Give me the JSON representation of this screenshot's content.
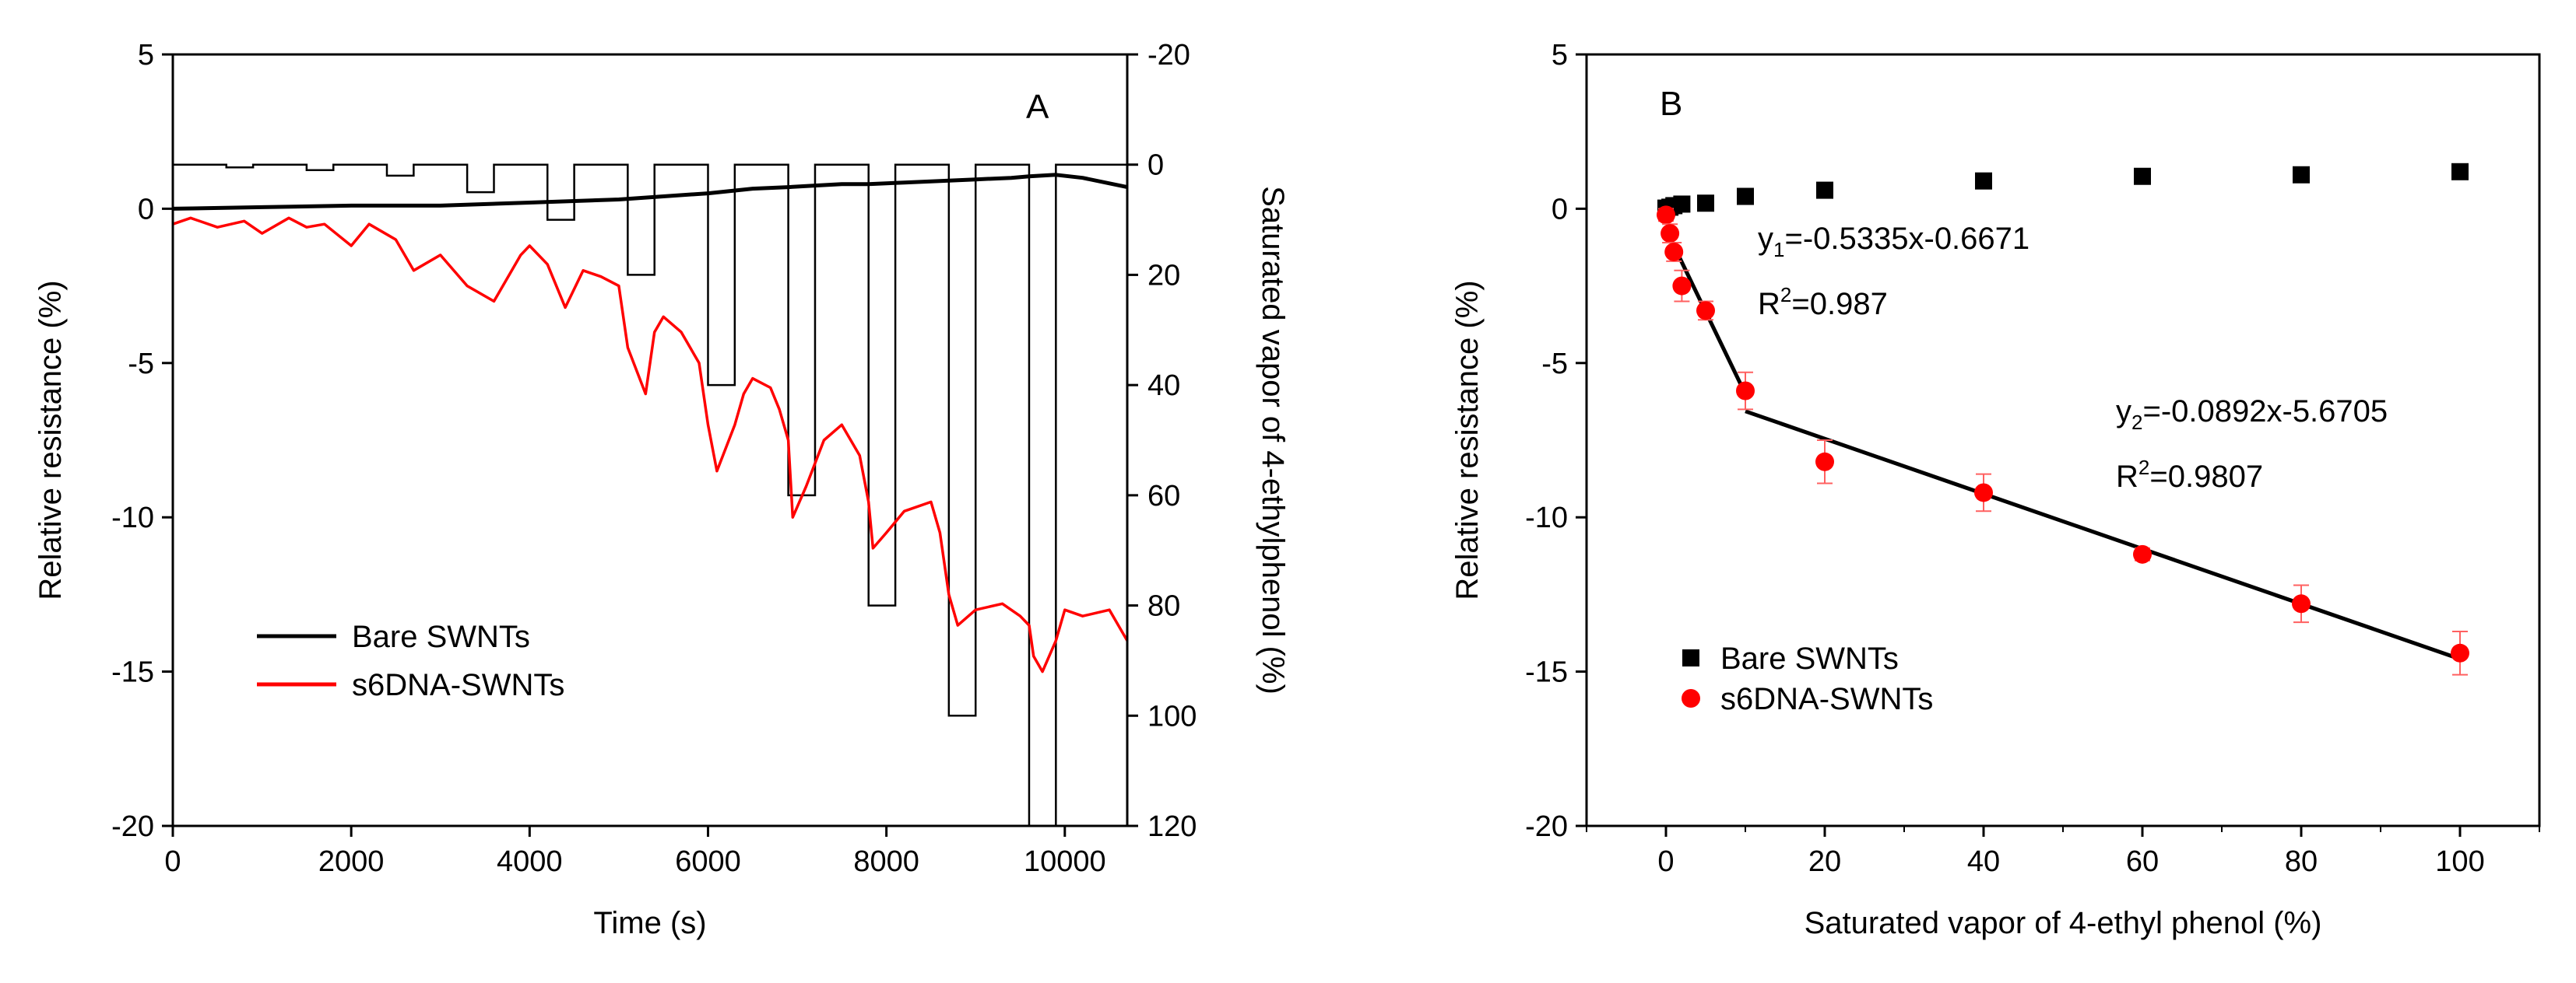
{
  "chart_data": [
    {
      "type": "line",
      "panel_label": "A",
      "xlabel": "Time (s)",
      "ylabel": "Relative resistance (%)",
      "y2label": "Saturated vapor of 4-ethylphenol (%)",
      "xlim": [
        0,
        10700
      ],
      "ylim": [
        -20,
        5
      ],
      "y2lim": [
        120,
        -20
      ],
      "xticks": [
        0,
        2000,
        4000,
        6000,
        8000,
        10000
      ],
      "yticks": [
        5,
        0,
        -5,
        -10,
        -15,
        -20
      ],
      "y2ticks": [
        -20,
        0,
        20,
        40,
        60,
        80,
        100,
        120
      ],
      "legend_position": "lower-left",
      "series": [
        {
          "name": "Bare SWNTs",
          "color": "#000000",
          "x": [
            0,
            1000,
            2000,
            3000,
            4000,
            4500,
            5000,
            5500,
            6000,
            6500,
            6900,
            7200,
            7500,
            7800,
            8200,
            8600,
            9000,
            9400,
            9600,
            9900,
            10200,
            10700
          ],
          "y": [
            0.0,
            0.05,
            0.1,
            0.1,
            0.2,
            0.25,
            0.3,
            0.4,
            0.5,
            0.65,
            0.7,
            0.75,
            0.8,
            0.8,
            0.85,
            0.9,
            0.95,
            1.0,
            1.05,
            1.1,
            1.0,
            0.7
          ]
        },
        {
          "name": "s6DNA-SWNTs",
          "color": "#ff0000",
          "x": [
            0,
            200,
            500,
            800,
            1000,
            1300,
            1500,
            1700,
            2000,
            2200,
            2500,
            2700,
            3000,
            3300,
            3600,
            3900,
            4000,
            4200,
            4400,
            4600,
            4800,
            5000,
            5100,
            5300,
            5400,
            5500,
            5700,
            5900,
            6000,
            6100,
            6300,
            6400,
            6500,
            6700,
            6800,
            6900,
            6950,
            7100,
            7300,
            7500,
            7700,
            7800,
            7850,
            8000,
            8200,
            8500,
            8600,
            8700,
            8800,
            9000,
            9300,
            9500,
            9600,
            9650,
            9750,
            9900,
            10000,
            10200,
            10500,
            10700
          ],
          "y": [
            -0.5,
            -0.3,
            -0.6,
            -0.4,
            -0.8,
            -0.3,
            -0.6,
            -0.5,
            -1.2,
            -0.5,
            -1.0,
            -2.0,
            -1.5,
            -2.5,
            -3.0,
            -1.5,
            -1.2,
            -1.8,
            -3.2,
            -2.0,
            -2.2,
            -2.5,
            -4.5,
            -6.0,
            -4.0,
            -3.5,
            -4.0,
            -5.0,
            -7.0,
            -8.5,
            -7.0,
            -6.0,
            -5.5,
            -5.8,
            -6.5,
            -7.5,
            -10.0,
            -9.0,
            -7.5,
            -7.0,
            -8.0,
            -9.5,
            -11.0,
            -10.5,
            -9.8,
            -9.5,
            -10.5,
            -12.5,
            -13.5,
            -13.0,
            -12.8,
            -13.2,
            -13.5,
            -14.5,
            -15.0,
            -14.0,
            -13.0,
            -13.2,
            -13.0,
            -14.0
          ]
        },
        {
          "name": "Saturated vapor of 4-ethylphenol",
          "axis": "y2",
          "color": "#000000",
          "steps": [
            {
              "start": 0,
              "end": 600,
              "value": 0
            },
            {
              "start": 600,
              "end": 900,
              "value": 0.5
            },
            {
              "start": 900,
              "end": 1500,
              "value": 0
            },
            {
              "start": 1500,
              "end": 1800,
              "value": 1
            },
            {
              "start": 1800,
              "end": 2400,
              "value": 0
            },
            {
              "start": 2400,
              "end": 2700,
              "value": 2
            },
            {
              "start": 2700,
              "end": 3300,
              "value": 0
            },
            {
              "start": 3300,
              "end": 3600,
              "value": 5
            },
            {
              "start": 3600,
              "end": 4200,
              "value": 0
            },
            {
              "start": 4200,
              "end": 4500,
              "value": 10
            },
            {
              "start": 4500,
              "end": 5100,
              "value": 0
            },
            {
              "start": 5100,
              "end": 5400,
              "value": 20
            },
            {
              "start": 5400,
              "end": 6000,
              "value": 0
            },
            {
              "start": 6000,
              "end": 6300,
              "value": 40
            },
            {
              "start": 6300,
              "end": 6900,
              "value": 0
            },
            {
              "start": 6900,
              "end": 7200,
              "value": 60
            },
            {
              "start": 7200,
              "end": 7800,
              "value": 0
            },
            {
              "start": 7800,
              "end": 8100,
              "value": 80
            },
            {
              "start": 8100,
              "end": 8700,
              "value": 0
            },
            {
              "start": 8700,
              "end": 9000,
              "value": 100
            },
            {
              "start": 9000,
              "end": 9600,
              "value": 0
            },
            {
              "start": 9600,
              "end": 9900,
              "value": 120
            },
            {
              "start": 9900,
              "end": 10700,
              "value": 0
            }
          ]
        }
      ]
    },
    {
      "type": "scatter",
      "panel_label": "B",
      "xlabel": "Saturated vapor of 4-ethyl phenol (%)",
      "ylabel": "Relative resistance (%)",
      "xlim": [
        -10,
        110
      ],
      "ylim": [
        -20,
        5
      ],
      "xticks": [
        0,
        20,
        40,
        60,
        80,
        100
      ],
      "yticks": [
        5,
        0,
        -5,
        -10,
        -15,
        -20
      ],
      "legend_position": "lower-left",
      "series": [
        {
          "name": "Bare SWNTs",
          "marker": "square",
          "color": "#000000",
          "x": [
            0,
            0.5,
            1,
            2,
            5,
            10,
            20,
            40,
            60,
            80,
            100
          ],
          "y": [
            0.02,
            0.05,
            0.1,
            0.15,
            0.18,
            0.4,
            0.6,
            0.9,
            1.05,
            1.1,
            1.2
          ]
        },
        {
          "name": "s6DNA-SWNTs",
          "marker": "circle",
          "color": "#ff0000",
          "x": [
            0,
            0.5,
            1,
            2,
            5,
            10,
            20,
            40,
            60,
            80,
            100
          ],
          "y": [
            -0.2,
            -0.8,
            -1.4,
            -2.5,
            -3.3,
            -5.9,
            -8.2,
            -9.2,
            -11.2,
            -12.8,
            -14.4
          ],
          "err": [
            0.2,
            0.3,
            0.3,
            0.5,
            0.3,
            0.6,
            0.7,
            0.6,
            0.2,
            0.6,
            0.7
          ]
        }
      ],
      "fits": [
        {
          "x": [
            0,
            10
          ],
          "y": [
            -0.6671,
            -6.0021
          ]
        },
        {
          "x": [
            10,
            100
          ],
          "y": [
            -6.5625,
            -14.5905
          ]
        }
      ],
      "annotations": {
        "eq1_y": "y",
        "eq1_sub": "1",
        "eq1_rest": "=-0.5335x-0.6671",
        "r2_1_prefix": "R",
        "r2_1_sup": "2",
        "r2_1_rest": "=0.987",
        "eq2_y": "y",
        "eq2_sub": "2",
        "eq2_rest": "=-0.0892x-5.6705",
        "r2_2_prefix": "R",
        "r2_2_sup": "2",
        "r2_2_rest": "=0.9807"
      }
    }
  ]
}
